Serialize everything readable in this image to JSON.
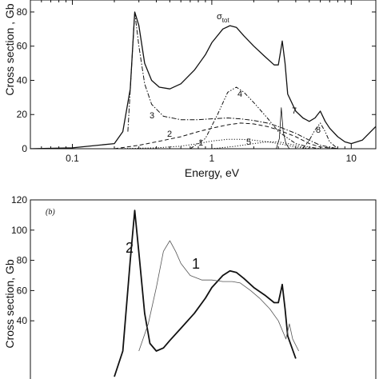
{
  "chart_data": [
    {
      "type": "line",
      "panel": "a",
      "xlabel": "Energy, eV",
      "ylabel": "Cross section , Gb",
      "xscale": "log",
      "xlim": [
        0.05,
        15
      ],
      "ylim": [
        0,
        87
      ],
      "x_ticks": [
        {
          "value": 0.1,
          "label": "0.1"
        },
        {
          "value": 1,
          "label": "1"
        },
        {
          "value": 10,
          "label": "10"
        }
      ],
      "y_ticks": [
        {
          "value": 0,
          "label": "0"
        },
        {
          "value": 20,
          "label": "20"
        },
        {
          "value": 40,
          "label": "40"
        },
        {
          "value": 60,
          "label": "60"
        },
        {
          "value": 80,
          "label": "80"
        }
      ],
      "grid": false,
      "series": [
        {
          "name": "σtot",
          "label_main": "σ",
          "label_sub": "tot",
          "style": "solid",
          "x": [
            0.05,
            0.1,
            0.2,
            0.23,
            0.26,
            0.28,
            0.3,
            0.33,
            0.37,
            0.42,
            0.5,
            0.6,
            0.75,
            0.9,
            1.0,
            1.2,
            1.35,
            1.5,
            1.7,
            2.0,
            2.4,
            2.8,
            3.0,
            3.1,
            3.2,
            3.35,
            3.5,
            4.0,
            4.5,
            5.0,
            5.5,
            6.0,
            6.5,
            7.0,
            8.0,
            9.0,
            10.0,
            12.0,
            15.0
          ],
          "y": [
            0,
            0.5,
            3,
            10,
            35,
            80,
            72,
            50,
            40,
            36,
            35,
            38,
            46,
            55,
            62,
            70,
            72,
            71,
            66,
            60,
            54,
            49,
            49,
            56,
            63,
            50,
            32,
            22,
            18,
            16,
            18,
            22,
            16,
            12,
            7,
            4,
            3,
            5,
            13
          ]
        },
        {
          "name": "1",
          "style": "dotted",
          "x": [
            0.2,
            0.4,
            0.6,
            0.8,
            1.0,
            1.3,
            1.6,
            2.0,
            2.5,
            3.0,
            4.0,
            5.0
          ],
          "y": [
            0,
            0.5,
            1.5,
            3,
            4.5,
            5.5,
            5.5,
            5,
            4,
            3,
            1,
            0
          ]
        },
        {
          "name": "2",
          "style": "dashed",
          "x": [
            0.2,
            0.3,
            0.4,
            0.6,
            0.8,
            1.0,
            1.3,
            1.6,
            2.0,
            2.5,
            3.0,
            4.0,
            5.0,
            6.0,
            8.0
          ],
          "y": [
            0,
            2,
            4,
            7,
            10,
            12,
            14,
            15,
            14.5,
            13,
            11,
            7,
            3,
            1,
            0
          ]
        },
        {
          "name": "3",
          "style": "dash-dot",
          "x": [
            0.25,
            0.28,
            0.3,
            0.33,
            0.37,
            0.45,
            0.6,
            0.8,
            1.0,
            1.3,
            1.6,
            2.0,
            2.5,
            3.0,
            4.0,
            5.0,
            6.0,
            8.0
          ],
          "y": [
            10,
            80,
            60,
            38,
            26,
            19,
            17,
            17,
            17.5,
            18,
            17.5,
            16.5,
            15,
            13,
            9,
            5,
            2,
            0
          ]
        },
        {
          "name": "4",
          "style": "dash-dot-dot",
          "x": [
            0.7,
            0.9,
            1.1,
            1.3,
            1.5,
            1.7,
            2.0,
            2.5,
            3.0,
            4.0,
            5.0,
            6.0
          ],
          "y": [
            0,
            6,
            20,
            33,
            36,
            33,
            27,
            18,
            10,
            3,
            1,
            0
          ]
        },
        {
          "name": "5",
          "style": "dotted",
          "x": [
            1.0,
            1.5,
            2.0,
            2.5,
            3.0,
            3.5,
            4.0,
            5.0
          ],
          "y": [
            0,
            1.5,
            3,
            4,
            4,
            3,
            2,
            0
          ]
        },
        {
          "name": "7",
          "style": "solid-thin",
          "x": [
            2.9,
            3.05,
            3.15,
            3.25,
            3.4,
            3.6
          ],
          "y": [
            0,
            6,
            24,
            10,
            3,
            0
          ]
        },
        {
          "name": "8",
          "style": "dash-dot-dot",
          "x": [
            4.5,
            5.0,
            5.5,
            6.0,
            6.5,
            7.0,
            8.0
          ],
          "y": [
            0,
            5,
            11,
            15,
            10,
            4,
            0
          ]
        }
      ]
    },
    {
      "type": "line",
      "panel": "b",
      "panel_tag": "(b)",
      "ylabel": "Cross section, Gb",
      "xscale": "log",
      "ylim": [
        20,
        120
      ],
      "y_ticks": [
        {
          "value": 40,
          "label": "40"
        },
        {
          "value": 60,
          "label": "60"
        },
        {
          "value": 80,
          "label": "80"
        },
        {
          "value": 100,
          "label": "100"
        },
        {
          "value": 120,
          "label": "120"
        }
      ],
      "grid": false,
      "series": [
        {
          "name": "2",
          "style": "solid-thick",
          "x": [
            0.2,
            0.23,
            0.26,
            0.28,
            0.3,
            0.33,
            0.36,
            0.4,
            0.45,
            0.5,
            0.6,
            0.75,
            0.9,
            1.0,
            1.2,
            1.35,
            1.5,
            1.7,
            2.0,
            2.4,
            2.8,
            3.0,
            3.1,
            3.2,
            3.35,
            3.5,
            4.0
          ],
          "y": [
            3,
            20,
            80,
            113,
            85,
            45,
            25,
            20,
            22,
            27,
            35,
            45,
            55,
            62,
            70,
            73,
            72,
            68,
            62,
            57,
            52,
            52,
            58,
            64,
            48,
            30,
            15
          ]
        },
        {
          "name": "1",
          "style": "solid-thin",
          "x": [
            0.3,
            0.35,
            0.4,
            0.45,
            0.5,
            0.55,
            0.6,
            0.7,
            0.85,
            1.0,
            1.2,
            1.4,
            1.6,
            1.9,
            2.2,
            2.6,
            3.0,
            3.4,
            3.6,
            3.8,
            4.2
          ],
          "y": [
            20,
            38,
            62,
            86,
            93,
            86,
            78,
            70,
            67,
            67,
            66,
            66,
            65,
            60,
            55,
            48,
            40,
            28,
            38,
            28,
            20
          ]
        }
      ]
    }
  ]
}
